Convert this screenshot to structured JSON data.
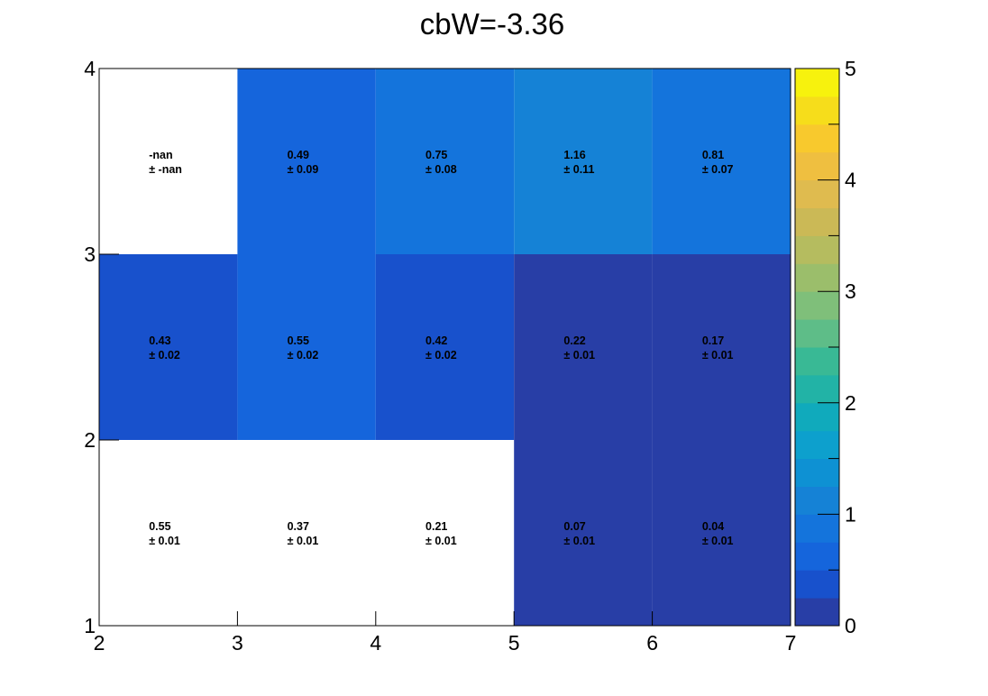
{
  "chart_data": {
    "type": "heatmap",
    "title": "cbW=-3.36",
    "x_edges": [
      2,
      3,
      4,
      5,
      6,
      7
    ],
    "y_edges": [
      1,
      2,
      3,
      4
    ],
    "xlim": [
      2,
      7
    ],
    "ylim": [
      1,
      4
    ],
    "x_ticks": [
      "2",
      "3",
      "4",
      "5",
      "6",
      "7"
    ],
    "y_ticks": [
      "1",
      "2",
      "3",
      "4"
    ],
    "zlim": [
      0,
      5
    ],
    "z_ticks": [
      "0",
      "1",
      "2",
      "3",
      "4",
      "5"
    ],
    "cells": [
      {
        "x": 2.5,
        "y": 1.5,
        "value": "0.55",
        "error": "0.01",
        "v": 0.55,
        "color": "#ffffff"
      },
      {
        "x": 3.5,
        "y": 1.5,
        "value": "0.37",
        "error": "0.01",
        "v": 0.37,
        "color": "#ffffff"
      },
      {
        "x": 4.5,
        "y": 1.5,
        "value": "0.21",
        "error": "0.01",
        "v": 0.21,
        "color": "#ffffff"
      },
      {
        "x": 5.5,
        "y": 1.5,
        "value": "0.07",
        "error": "0.01",
        "v": 0.07,
        "color": "#283ea6"
      },
      {
        "x": 6.5,
        "y": 1.5,
        "value": "0.04",
        "error": "0.01",
        "v": 0.04,
        "color": "#283ea6"
      },
      {
        "x": 2.5,
        "y": 2.5,
        "value": "0.43",
        "error": "0.02",
        "v": 0.43,
        "color": "#1851cc"
      },
      {
        "x": 3.5,
        "y": 2.5,
        "value": "0.55",
        "error": "0.02",
        "v": 0.55,
        "color": "#1565dc"
      },
      {
        "x": 4.5,
        "y": 2.5,
        "value": "0.42",
        "error": "0.02",
        "v": 0.42,
        "color": "#1851cc"
      },
      {
        "x": 5.5,
        "y": 2.5,
        "value": "0.22",
        "error": "0.01",
        "v": 0.22,
        "color": "#283ea6"
      },
      {
        "x": 6.5,
        "y": 2.5,
        "value": "0.17",
        "error": "0.01",
        "v": 0.17,
        "color": "#283ea6"
      },
      {
        "x": 2.5,
        "y": 3.5,
        "value": "-nan",
        "error": "-nan",
        "v": null,
        "color": "#ffffff"
      },
      {
        "x": 3.5,
        "y": 3.5,
        "value": "0.49",
        "error": "0.09",
        "v": 0.49,
        "color": "#1565dc"
      },
      {
        "x": 4.5,
        "y": 3.5,
        "value": "0.75",
        "error": "0.08",
        "v": 0.75,
        "color": "#1474dc"
      },
      {
        "x": 5.5,
        "y": 3.5,
        "value": "1.16",
        "error": "0.11",
        "v": 1.16,
        "color": "#1582d6"
      },
      {
        "x": 6.5,
        "y": 3.5,
        "value": "0.81",
        "error": "0.07",
        "v": 0.81,
        "color": "#1474dc"
      }
    ],
    "palette": [
      "#283ea6",
      "#1851cc",
      "#1565dc",
      "#1474dc",
      "#1582d6",
      "#0e91d3",
      "#0da0cd",
      "#10aabc",
      "#22b3a6",
      "#39b995",
      "#5ebd88",
      "#7fbf7a",
      "#9bbe6b",
      "#b5bc5f",
      "#cbb956",
      "#dfbb4f",
      "#efbf40",
      "#f8c92d",
      "#f6dd1b",
      "#f7f20d"
    ]
  }
}
